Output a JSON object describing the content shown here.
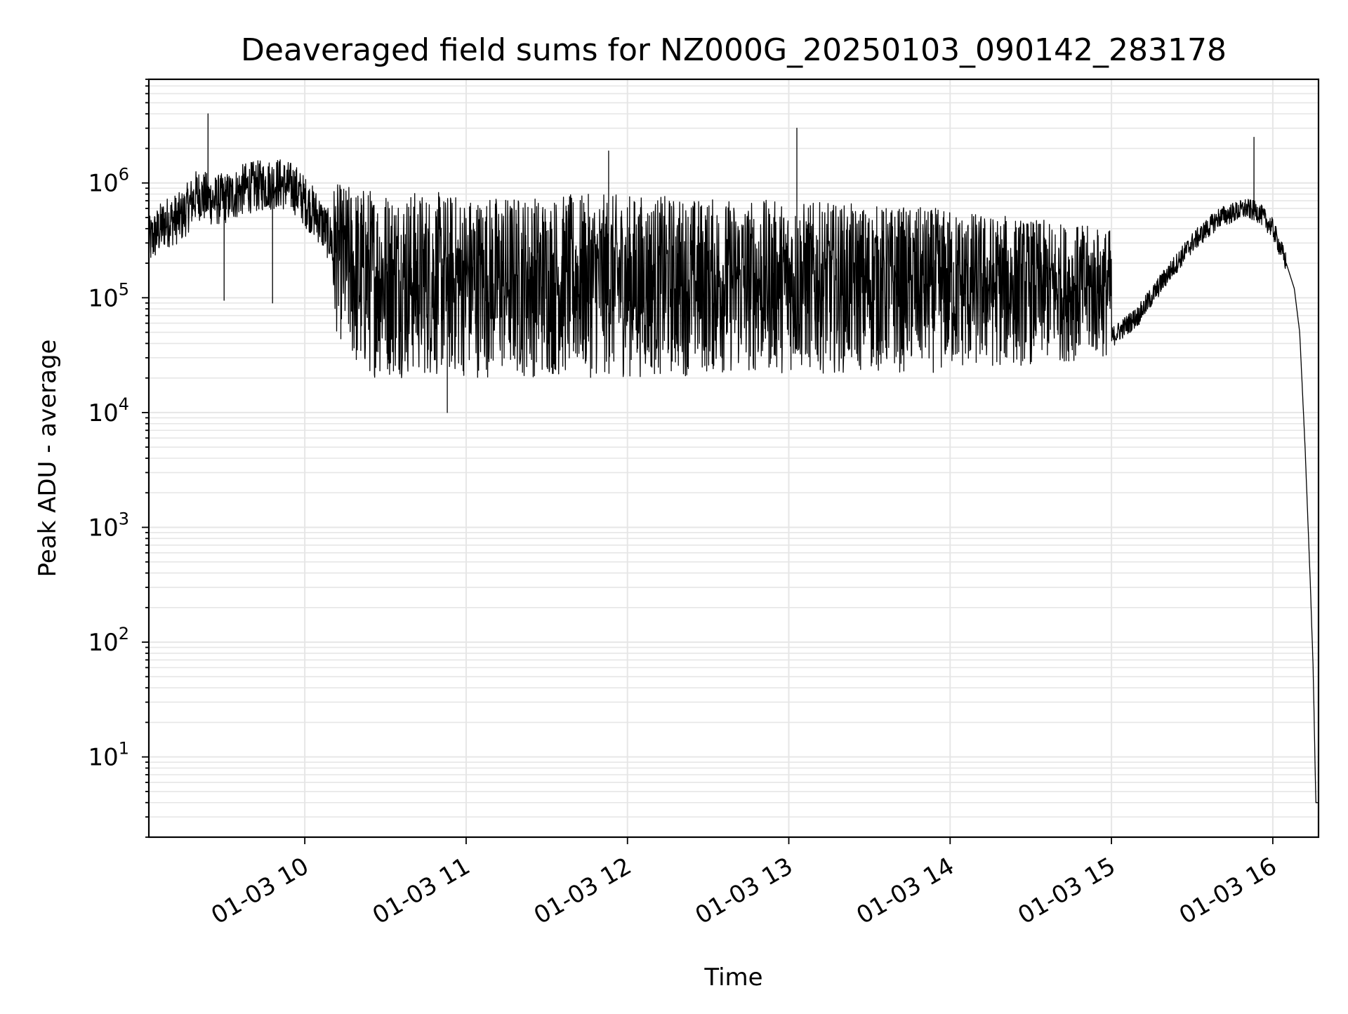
{
  "chart_data": {
    "type": "line",
    "title": "Deaveraged field sums for NZ000G_20250103_090142_283178",
    "xlabel": "Time",
    "ylabel": "Peak ADU - average",
    "yscale": "log",
    "ylim": [
      2,
      8000000
    ],
    "xlim": [
      "01-03 09:02",
      "01-03 16:17"
    ],
    "grid": true,
    "legend": "none",
    "line_color": "#000000",
    "grid_color": "#e6e6e6",
    "x_ticks": [
      {
        "label": "01-03 10",
        "time": "01-03 10:00"
      },
      {
        "label": "01-03 11",
        "time": "01-03 11:00"
      },
      {
        "label": "01-03 12",
        "time": "01-03 12:00"
      },
      {
        "label": "01-03 13",
        "time": "01-03 13:00"
      },
      {
        "label": "01-03 14",
        "time": "01-03 14:00"
      },
      {
        "label": "01-03 15",
        "time": "01-03 15:00"
      },
      {
        "label": "01-03 16",
        "time": "01-03 16:00"
      }
    ],
    "y_ticks": [
      {
        "base": "10",
        "exp": "1",
        "value": 10
      },
      {
        "base": "10",
        "exp": "2",
        "value": 100
      },
      {
        "base": "10",
        "exp": "3",
        "value": 1000
      },
      {
        "base": "10",
        "exp": "4",
        "value": 10000
      },
      {
        "base": "10",
        "exp": "5",
        "value": 100000
      },
      {
        "base": "10",
        "exp": "6",
        "value": 1000000
      }
    ],
    "series": [
      {
        "x": [
          "01-03 09:02",
          "01-03 09:08",
          "01-03 09:14",
          "01-03 09:20",
          "01-03 09:26",
          "01-03 09:32",
          "01-03 09:38",
          "01-03 09:44",
          "01-03 09:50",
          "01-03 09:56",
          "01-03 10:05",
          "01-03 10:15",
          "01-03 10:30",
          "01-03 10:45",
          "01-03 11:00",
          "01-03 11:30",
          "01-03 12:00",
          "01-03 12:30",
          "01-03 13:00",
          "01-03 13:30",
          "01-03 14:00",
          "01-03 14:30",
          "01-03 15:00",
          "01-03 15:10",
          "01-03 15:20",
          "01-03 15:30",
          "01-03 15:40",
          "01-03 15:50",
          "01-03 15:55",
          "01-03 16:00",
          "01-03 16:05",
          "01-03 16:08",
          "01-03 16:10",
          "01-03 16:12",
          "01-03 16:14",
          "01-03 16:15",
          "01-03 16:16",
          "01-03 16:17"
        ],
        "y": [
          300000,
          450000,
          500000,
          800000,
          700000,
          750000,
          900000,
          950000,
          1000000,
          900000,
          500000,
          200000,
          120000,
          100000,
          110000,
          100000,
          100000,
          100000,
          80000,
          70000,
          60000,
          50000,
          45000,
          70000,
          150000,
          300000,
          500000,
          600000,
          550000,
          400000,
          200000,
          120000,
          50000,
          5000,
          300,
          60,
          4,
          4
        ],
        "spikes": [
          {
            "time": "01-03 09:24",
            "value": 4000000
          },
          {
            "time": "01-03 11:53",
            "value": 1900000
          },
          {
            "time": "01-03 13:03",
            "value": 3000000
          },
          {
            "time": "01-03 15:53",
            "value": 2500000
          },
          {
            "time": "01-03 10:53",
            "value": 10000
          },
          {
            "time": "01-03 09:30",
            "value": 95000
          },
          {
            "time": "01-03 09:48",
            "value": 90000
          }
        ],
        "band_low": [
          {
            "time": "01-03 10:10",
            "value": 60000
          },
          {
            "time": "01-03 10:20",
            "value": 20000
          },
          {
            "time": "01-03 11:00",
            "value": 20000
          },
          {
            "time": "01-03 12:00",
            "value": 20000
          },
          {
            "time": "01-03 13:00",
            "value": 22000
          },
          {
            "time": "01-03 14:00",
            "value": 22000
          },
          {
            "time": "01-03 15:00",
            "value": 30000
          }
        ],
        "band_high": [
          {
            "time": "01-03 10:10",
            "value": 1000000
          },
          {
            "time": "01-03 11:00",
            "value": 800000
          },
          {
            "time": "01-03 12:00",
            "value": 800000
          },
          {
            "time": "01-03 13:00",
            "value": 700000
          },
          {
            "time": "01-03 14:00",
            "value": 600000
          },
          {
            "time": "01-03 15:00",
            "value": 400000
          }
        ]
      }
    ]
  }
}
